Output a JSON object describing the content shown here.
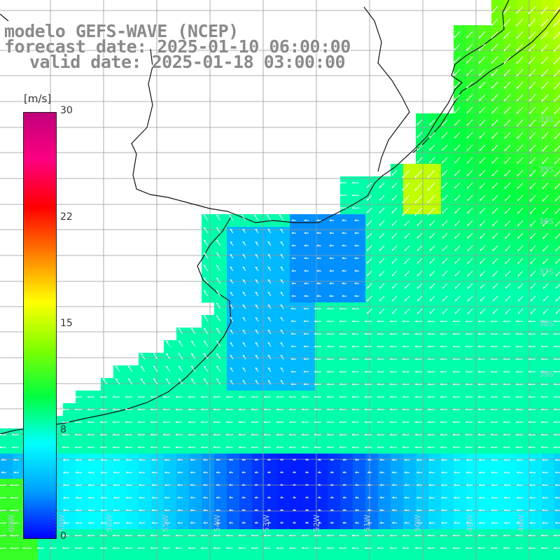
{
  "title": {
    "line1": "modelo GEFS-WAVE (NCEP)",
    "line2": "forecast date: 2025-01-10 06:00:00",
    "line3": "valid date: 2025-01-18 03:00:00"
  },
  "colorbar": {
    "unit": "[m/s]",
    "ticks": [
      "30",
      "22",
      "15",
      "8",
      "0"
    ],
    "min": 0,
    "max": 30,
    "colors": [
      "#0000ff",
      "#00a0ff",
      "#00ffff",
      "#00ff40",
      "#80ff00",
      "#ffff00",
      "#ff8000",
      "#ff0000",
      "#ff0080",
      "#c0007a"
    ]
  },
  "graticule": {
    "lat_labels": [
      "33S",
      "35S",
      "36S",
      "37S",
      "38S",
      "39S"
    ],
    "lon_labels": [
      "60W",
      "58W",
      "56W",
      "55W",
      "54W",
      "53W",
      "52W",
      "51W",
      "50W",
      "48W",
      "46W"
    ]
  },
  "field": {
    "variable": "wind speed",
    "coast_color": "#111111",
    "grid_color": "#999999"
  }
}
